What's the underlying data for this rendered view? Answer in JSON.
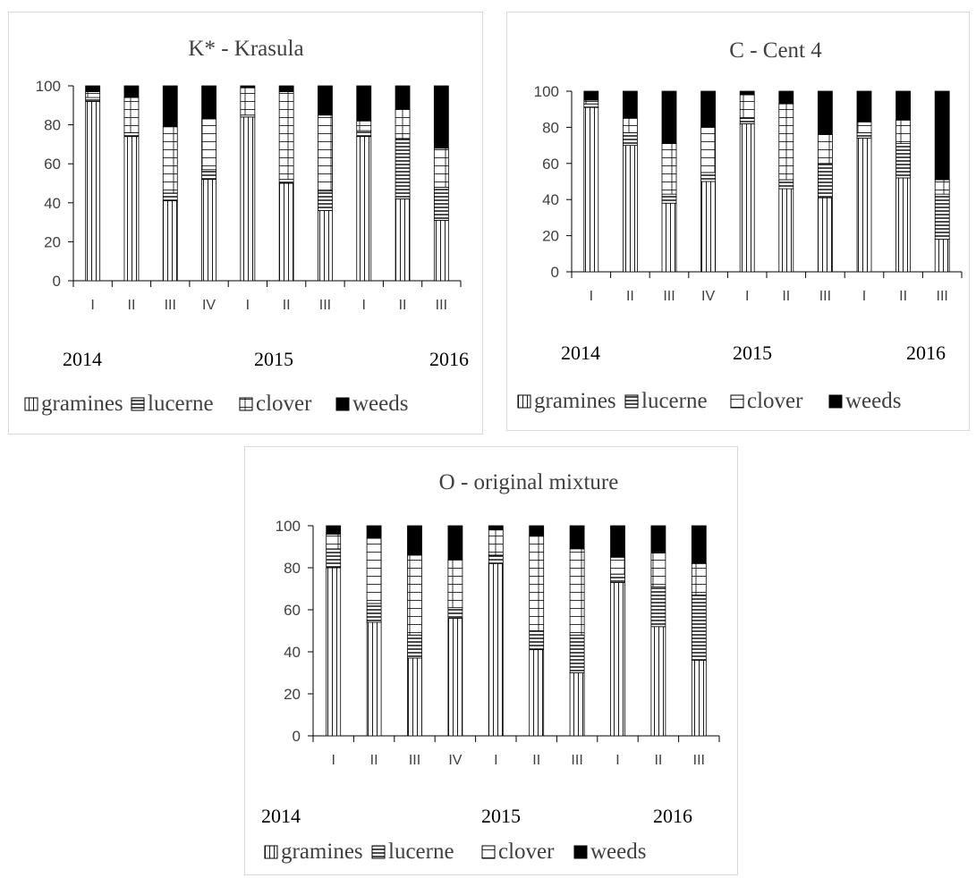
{
  "chart_data": [
    {
      "type": "bar",
      "stacked": true,
      "title": "K* - Krasula",
      "categories": [
        "I",
        "II",
        "III",
        "IV",
        "I",
        "II",
        "III",
        "I",
        "II",
        "III"
      ],
      "year_labels": [
        "2014",
        "2015",
        "2016"
      ],
      "ylim": [
        0,
        100
      ],
      "yticks": [
        0,
        20,
        40,
        60,
        80,
        100
      ],
      "grid": false,
      "legend_position": "bottom",
      "series": [
        {
          "name": "gramines",
          "values": [
            92,
            74,
            41,
            52,
            84,
            50,
            36,
            74,
            42,
            31
          ]
        },
        {
          "name": "lucerne",
          "values": [
            2,
            2,
            4,
            5,
            1,
            2,
            10,
            3,
            31,
            17
          ]
        },
        {
          "name": "clover",
          "values": [
            3,
            18,
            34,
            26,
            14,
            45,
            39,
            5,
            15,
            20
          ]
        },
        {
          "name": "weeds",
          "values": [
            3,
            6,
            21,
            17,
            1,
            3,
            15,
            18,
            12,
            32
          ]
        }
      ]
    },
    {
      "type": "bar",
      "stacked": true,
      "title": "C - Cent 4",
      "categories": [
        "I",
        "II",
        "III",
        "IV",
        "I",
        "II",
        "III",
        "I",
        "II",
        "III"
      ],
      "year_labels": [
        "2014",
        "2015",
        "2016"
      ],
      "ylim": [
        0,
        100
      ],
      "yticks": [
        0,
        20,
        40,
        60,
        80,
        100
      ],
      "grid": false,
      "legend_position": "bottom",
      "series": [
        {
          "name": "gramines",
          "values": [
            91,
            70,
            38,
            50,
            82,
            46,
            41,
            74,
            52,
            18
          ]
        },
        {
          "name": "lucerne",
          "values": [
            2,
            7,
            5,
            5,
            3,
            5,
            19,
            3,
            19,
            25
          ]
        },
        {
          "name": "clover",
          "values": [
            2,
            8,
            28,
            25,
            13,
            42,
            16,
            6,
            13,
            8
          ]
        },
        {
          "name": "weeds",
          "values": [
            5,
            15,
            29,
            20,
            2,
            7,
            24,
            17,
            16,
            49
          ]
        }
      ]
    },
    {
      "type": "bar",
      "stacked": true,
      "title": "O - original mixture",
      "categories": [
        "I",
        "II",
        "III",
        "IV",
        "I",
        "II",
        "III",
        "I",
        "II",
        "III"
      ],
      "year_labels": [
        "2014",
        "2015",
        "2016"
      ],
      "ylim": [
        0,
        100
      ],
      "yticks": [
        0,
        20,
        40,
        60,
        80,
        100
      ],
      "grid": false,
      "legend_position": "bottom",
      "series": [
        {
          "name": "gramines",
          "values": [
            80,
            54,
            37,
            56,
            82,
            41,
            30,
            73,
            52,
            36
          ]
        },
        {
          "name": "lucerne",
          "values": [
            9,
            9,
            11,
            5,
            4,
            9,
            18,
            4,
            19,
            31
          ]
        },
        {
          "name": "clover",
          "values": [
            7,
            31,
            38,
            23,
            12,
            45,
            41,
            8,
            16,
            15
          ]
        },
        {
          "name": "weeds",
          "values": [
            4,
            6,
            14,
            16,
            2,
            5,
            11,
            15,
            13,
            18
          ]
        }
      ]
    }
  ]
}
